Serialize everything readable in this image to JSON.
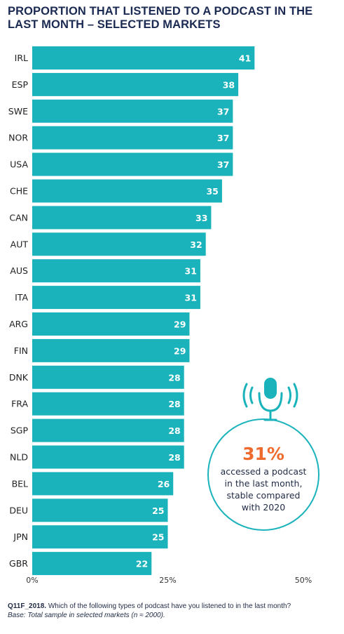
{
  "title": "PROPORTION THAT LISTENED TO A PODCAST IN THE LAST MONTH – SELECTED MARKETS",
  "chart_data": {
    "type": "bar",
    "orientation": "horizontal",
    "title": "PROPORTION THAT LISTENED TO A PODCAST IN THE LAST MONTH – SELECTED MARKETS",
    "categories": [
      "IRL",
      "ESP",
      "SWE",
      "NOR",
      "USA",
      "CHE",
      "CAN",
      "AUT",
      "AUS",
      "ITA",
      "ARG",
      "FIN",
      "DNK",
      "FRA",
      "SGP",
      "NLD",
      "BEL",
      "DEU",
      "JPN",
      "GBR"
    ],
    "values": [
      41,
      38,
      37,
      37,
      37,
      35,
      33,
      32,
      31,
      31,
      29,
      29,
      28,
      28,
      28,
      28,
      26,
      25,
      25,
      22
    ],
    "xlim": [
      0,
      50
    ],
    "xticks": [
      "0%",
      "25%",
      "50%"
    ],
    "bar_color": "#1bb3bb",
    "grid": false
  },
  "callout": {
    "percent": "31%",
    "lines": [
      "accessed a podcast",
      "in the last month,",
      "stable compared",
      "with 2020"
    ],
    "ring_color": "#1bb3bb",
    "icon": "microphone-icon"
  },
  "footnote": {
    "question_code": "Q11F_2018.",
    "question": " Which of the following types of podcast have you listened to in the last month?",
    "base": "Base: Total sample in selected markets (n ≈ 2000)."
  }
}
